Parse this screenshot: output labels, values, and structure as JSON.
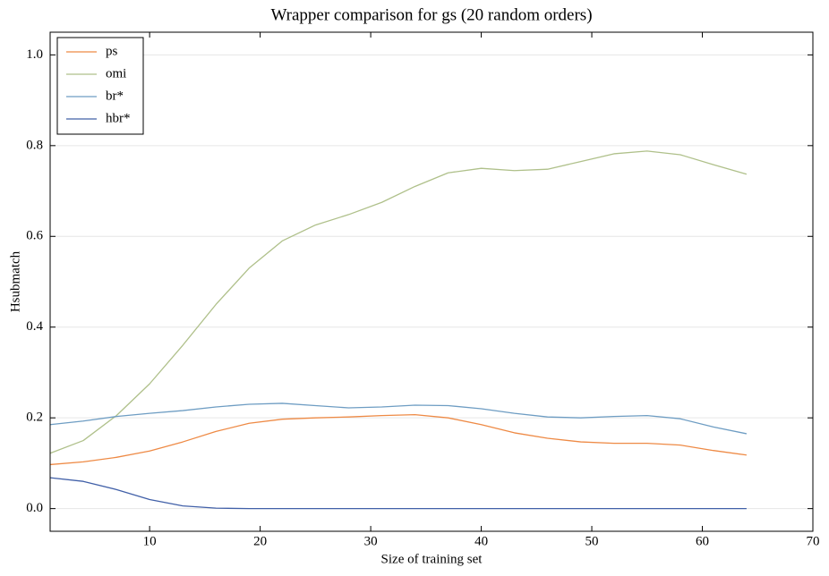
{
  "chart_data": {
    "type": "line",
    "title": "Wrapper comparison for gs (20 random orders)",
    "x_label": "Size of training set",
    "y_label": "Hsubmatch",
    "x": [
      1,
      4,
      7,
      10,
      13,
      16,
      19,
      22,
      25,
      28,
      31,
      34,
      37,
      40,
      43,
      46,
      49,
      52,
      55,
      58,
      61,
      64
    ],
    "series": [
      {
        "name": "ps",
        "color": "#ee8a45",
        "values": [
          0.097,
          0.103,
          0.113,
          0.127,
          0.147,
          0.17,
          0.188,
          0.197,
          0.2,
          0.202,
          0.205,
          0.207,
          0.2,
          0.185,
          0.167,
          0.155,
          0.147,
          0.144,
          0.144,
          0.14,
          0.128,
          0.118
        ]
      },
      {
        "name": "omi",
        "color": "#afc08a",
        "values": [
          0.122,
          0.15,
          0.205,
          0.275,
          0.36,
          0.45,
          0.53,
          0.59,
          0.625,
          0.648,
          0.675,
          0.71,
          0.74,
          0.75,
          0.745,
          0.748,
          0.765,
          0.782,
          0.788,
          0.78,
          0.758,
          0.737
        ]
      },
      {
        "name": "br*",
        "color": "#6e9dc3",
        "values": [
          0.185,
          0.193,
          0.203,
          0.21,
          0.216,
          0.224,
          0.23,
          0.232,
          0.227,
          0.222,
          0.224,
          0.228,
          0.227,
          0.22,
          0.21,
          0.202,
          0.2,
          0.203,
          0.205,
          0.198,
          0.18,
          0.165
        ]
      },
      {
        "name": "hbr*",
        "color": "#4160a8",
        "values": [
          0.068,
          0.06,
          0.042,
          0.02,
          0.006,
          0.001,
          0,
          0,
          0,
          0,
          0,
          0,
          0,
          0,
          0,
          0,
          0,
          0,
          0,
          0,
          0,
          0
        ]
      }
    ],
    "xlim": [
      1,
      70
    ],
    "ylim": [
      -0.05,
      1.05
    ],
    "xticks": [
      10,
      20,
      30,
      40,
      50,
      60,
      70
    ],
    "yticks": [
      {
        "value": 0,
        "label": "0.0"
      },
      {
        "value": 0.2,
        "label": "0.2"
      },
      {
        "value": 0.4,
        "label": "0.4"
      },
      {
        "value": 0.6,
        "label": "0.6"
      },
      {
        "value": 0.8,
        "label": "0.8"
      },
      {
        "value": 1,
        "label": "1.0"
      }
    ],
    "grid": true,
    "legend": "upper-left"
  }
}
